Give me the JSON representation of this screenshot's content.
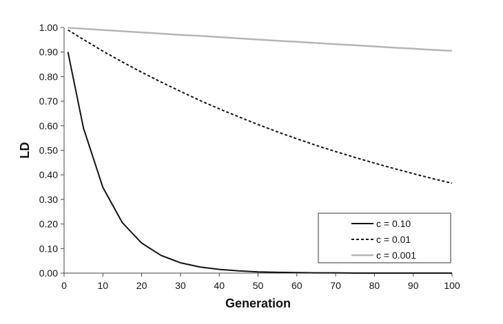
{
  "chart_data": {
    "type": "line",
    "title": "",
    "xlabel": "Generation",
    "ylabel": "LD",
    "xlim": [
      0,
      100
    ],
    "ylim": [
      0,
      1
    ],
    "x_ticks": [
      0,
      10,
      20,
      30,
      40,
      50,
      60,
      70,
      80,
      90,
      100
    ],
    "x_tick_labels": [
      "0",
      "10",
      "20",
      "30",
      "40",
      "50",
      "60",
      "70",
      "80",
      "90",
      "100"
    ],
    "y_ticks": [
      0,
      0.1,
      0.2,
      0.3,
      0.4,
      0.5,
      0.6,
      0.7,
      0.8,
      0.9,
      1.0
    ],
    "y_tick_labels": [
      "0.00",
      "0.10",
      "0.20",
      "0.30",
      "0.40",
      "0.50",
      "0.60",
      "0.70",
      "0.80",
      "0.90",
      "1.00"
    ],
    "grid": false,
    "legend_position": "bottom-right",
    "x": [
      1,
      5,
      10,
      15,
      20,
      25,
      30,
      35,
      40,
      45,
      50,
      55,
      60,
      65,
      70,
      75,
      80,
      85,
      90,
      95,
      100
    ],
    "series": [
      {
        "name": "c = 0.10",
        "style": "solid",
        "color": "#111111",
        "values": [
          0.9,
          0.59,
          0.349,
          0.206,
          0.122,
          0.072,
          0.042,
          0.025,
          0.015,
          0.009,
          0.005,
          0.003,
          0.002,
          0.001,
          0.001,
          0.0,
          0.0,
          0.0,
          0.0,
          0.0,
          0.0
        ]
      },
      {
        "name": "c = 0.01",
        "style": "dashed",
        "color": "#111111",
        "values": [
          0.99,
          0.951,
          0.904,
          0.86,
          0.818,
          0.778,
          0.74,
          0.703,
          0.669,
          0.636,
          0.605,
          0.575,
          0.547,
          0.52,
          0.495,
          0.471,
          0.448,
          0.426,
          0.405,
          0.385,
          0.366
        ]
      },
      {
        "name": "c = 0.001",
        "style": "solid",
        "color": "#b5b5b5",
        "values": [
          0.999,
          0.995,
          0.99,
          0.985,
          0.98,
          0.975,
          0.97,
          0.966,
          0.961,
          0.956,
          0.951,
          0.946,
          0.942,
          0.937,
          0.932,
          0.928,
          0.923,
          0.918,
          0.914,
          0.909,
          0.905
        ]
      }
    ]
  }
}
